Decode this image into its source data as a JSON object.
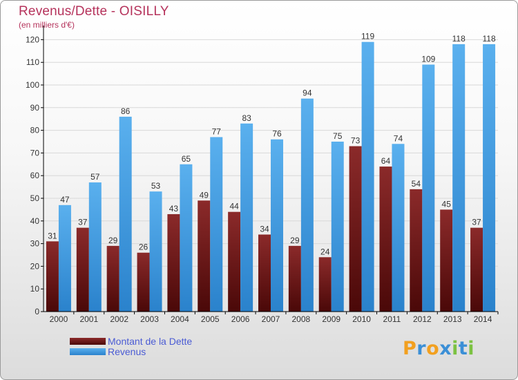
{
  "title": "Revenus/Dette - OISILLY",
  "subtitle": "(en milliers d'€)",
  "colors": {
    "dette_top": "#8b2a2a",
    "dette_bottom": "#4a0808",
    "revenus_top": "#5ab0ee",
    "revenus_bottom": "#2a82cc",
    "axis": "#000000",
    "grid": "#d8d8d8",
    "label": "#333333"
  },
  "chart_data": {
    "type": "bar",
    "categories": [
      "2000",
      "2001",
      "2002",
      "2003",
      "2004",
      "2005",
      "2006",
      "2007",
      "2008",
      "2009",
      "2010",
      "2011",
      "2012",
      "2013",
      "2014"
    ],
    "series": [
      {
        "name": "Montant de la Dette",
        "values": [
          31,
          37,
          29,
          26,
          43,
          49,
          44,
          34,
          29,
          24,
          73,
          64,
          54,
          45,
          37
        ]
      },
      {
        "name": "Revenus",
        "values": [
          47,
          57,
          86,
          53,
          65,
          77,
          83,
          76,
          94,
          75,
          119,
          74,
          109,
          118,
          118
        ]
      }
    ],
    "yticks": [
      0,
      10,
      20,
      30,
      40,
      50,
      60,
      70,
      80,
      90,
      100,
      110,
      120
    ],
    "ylim": [
      0,
      125
    ],
    "grid": true,
    "data_labels": true,
    "legend_position": "bottom-left"
  },
  "legend": {
    "items": [
      {
        "label": "Montant de la Dette",
        "color_key": "dette"
      },
      {
        "label": "Revenus",
        "color_key": "revenus"
      }
    ]
  },
  "logo": {
    "letters": [
      "P",
      "r",
      "o",
      "x",
      "i",
      "t",
      "i"
    ],
    "colors": [
      "#f2a020",
      "#3b8fd6",
      "#f2a020",
      "#3b8fd6",
      "#7cc242",
      "#3b8fd6",
      "#7cc242"
    ]
  }
}
